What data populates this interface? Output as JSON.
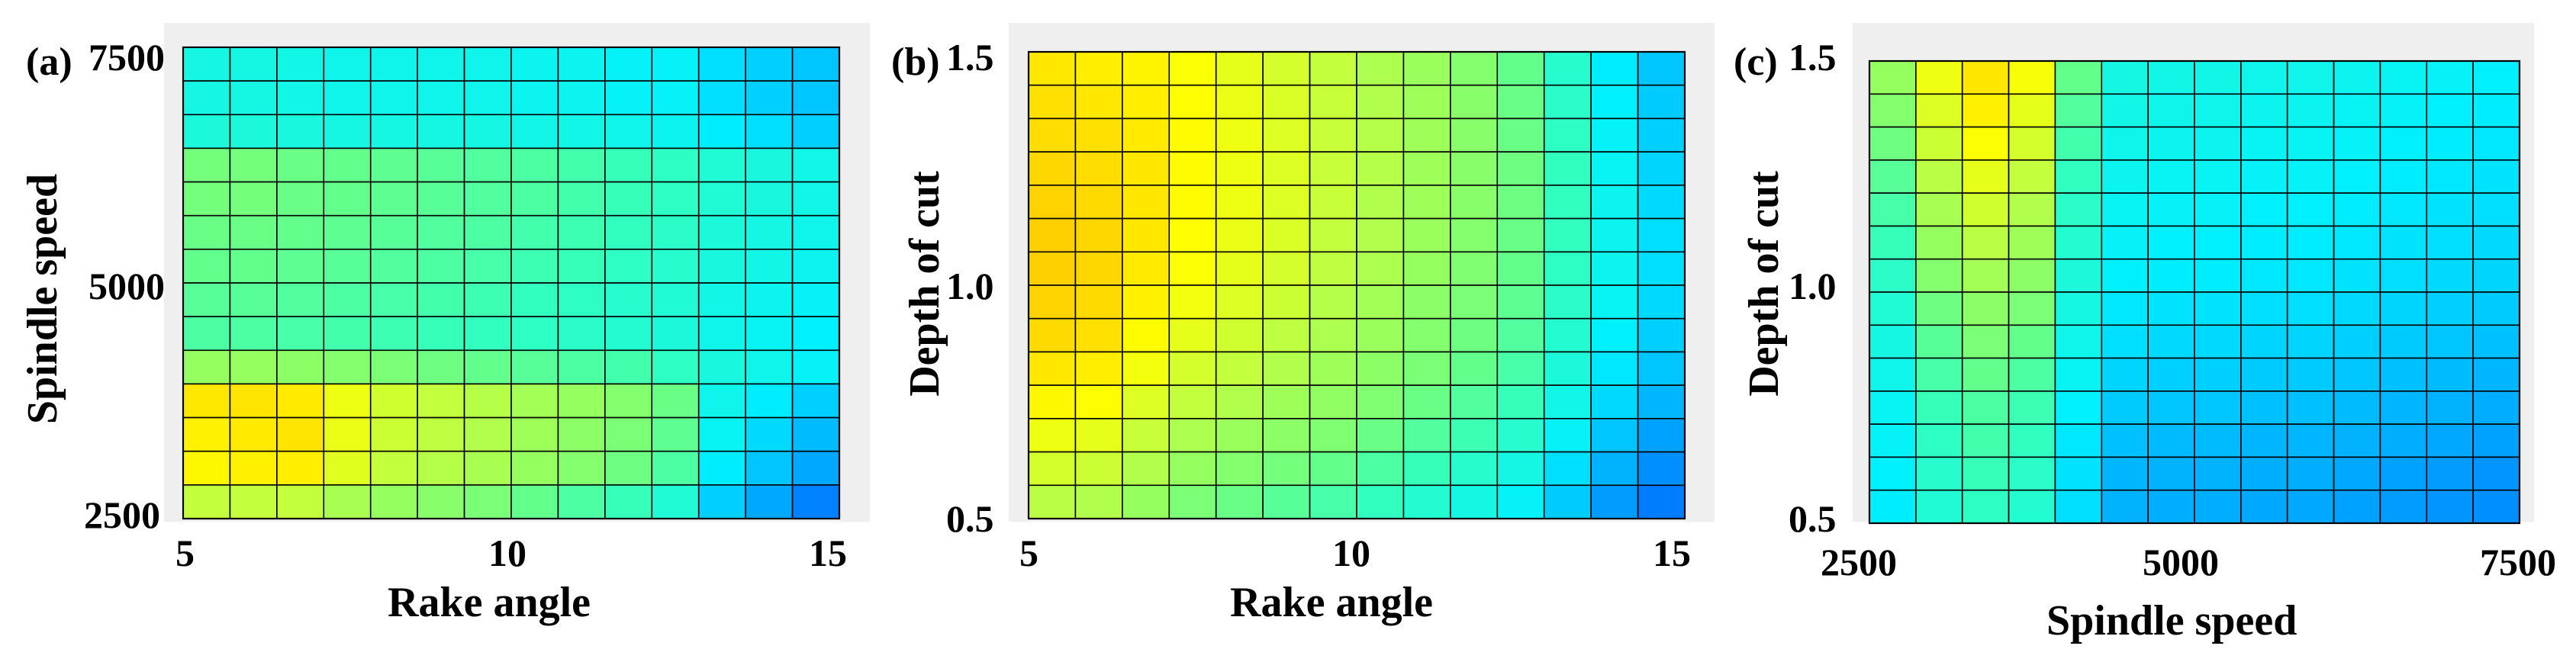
{
  "chart_data": [
    {
      "type": "heatmap",
      "panel_label": "(a)",
      "xlabel": "Rake angle",
      "ylabel": "Spindle speed",
      "xlim": [
        5,
        15
      ],
      "ylim": [
        2500,
        7500
      ],
      "x_ticks": [
        "5",
        "10",
        "15"
      ],
      "y_ticks": [
        "2500",
        "5000",
        "7500"
      ],
      "nx": 14,
      "ny": 14,
      "colorscale": [
        "#0050ff",
        "#00aaff",
        "#00f0ff",
        "#30ffc0",
        "#80ff70",
        "#c0ff40",
        "#ffff00",
        "#ffd000"
      ],
      "grid": true,
      "values_rows_top_to_bottom": [
        [
          0.35,
          0.35,
          0.34,
          0.33,
          0.33,
          0.33,
          0.33,
          0.32,
          0.32,
          0.3,
          0.3,
          0.25,
          0.22,
          0.2
        ],
        [
          0.35,
          0.35,
          0.34,
          0.33,
          0.33,
          0.33,
          0.33,
          0.32,
          0.32,
          0.3,
          0.3,
          0.25,
          0.22,
          0.2
        ],
        [
          0.37,
          0.37,
          0.36,
          0.35,
          0.35,
          0.35,
          0.35,
          0.34,
          0.34,
          0.33,
          0.32,
          0.28,
          0.25,
          0.22
        ],
        [
          0.55,
          0.55,
          0.53,
          0.52,
          0.51,
          0.5,
          0.49,
          0.48,
          0.46,
          0.44,
          0.42,
          0.38,
          0.36,
          0.34
        ],
        [
          0.55,
          0.55,
          0.53,
          0.52,
          0.51,
          0.5,
          0.49,
          0.48,
          0.46,
          0.44,
          0.42,
          0.38,
          0.36,
          0.34
        ],
        [
          0.53,
          0.53,
          0.52,
          0.51,
          0.5,
          0.49,
          0.48,
          0.46,
          0.45,
          0.43,
          0.41,
          0.37,
          0.35,
          0.33
        ],
        [
          0.52,
          0.52,
          0.51,
          0.5,
          0.49,
          0.48,
          0.47,
          0.45,
          0.44,
          0.42,
          0.4,
          0.36,
          0.34,
          0.32
        ],
        [
          0.5,
          0.5,
          0.49,
          0.48,
          0.47,
          0.46,
          0.45,
          0.43,
          0.42,
          0.4,
          0.38,
          0.34,
          0.32,
          0.3
        ],
        [
          0.48,
          0.48,
          0.47,
          0.46,
          0.45,
          0.44,
          0.43,
          0.42,
          0.41,
          0.39,
          0.37,
          0.33,
          0.31,
          0.29
        ],
        [
          0.62,
          0.62,
          0.6,
          0.58,
          0.56,
          0.54,
          0.52,
          0.5,
          0.48,
          0.46,
          0.42,
          0.36,
          0.33,
          0.3
        ],
        [
          0.93,
          0.94,
          0.92,
          0.82,
          0.75,
          0.72,
          0.69,
          0.65,
          0.62,
          0.58,
          0.53,
          0.33,
          0.28,
          0.22
        ],
        [
          0.9,
          0.92,
          0.94,
          0.81,
          0.74,
          0.71,
          0.68,
          0.64,
          0.6,
          0.56,
          0.51,
          0.31,
          0.24,
          0.18
        ],
        [
          0.88,
          0.9,
          0.91,
          0.79,
          0.72,
          0.69,
          0.66,
          0.62,
          0.58,
          0.54,
          0.48,
          0.28,
          0.2,
          0.14
        ],
        [
          0.72,
          0.72,
          0.72,
          0.66,
          0.62,
          0.59,
          0.56,
          0.52,
          0.48,
          0.44,
          0.38,
          0.22,
          0.14,
          0.08
        ]
      ]
    },
    {
      "type": "heatmap",
      "panel_label": "(b)",
      "xlabel": "Rake angle",
      "ylabel": "Depth of cut",
      "xlim": [
        5,
        15
      ],
      "ylim": [
        0.5,
        1.5
      ],
      "x_ticks": [
        "5",
        "10",
        "15"
      ],
      "y_ticks": [
        "0.5",
        "1.0",
        "1.5"
      ],
      "nx": 14,
      "ny": 14,
      "colorscale": [
        "#0050ff",
        "#00aaff",
        "#00f0ff",
        "#30ffc0",
        "#80ff70",
        "#c0ff40",
        "#ffff00",
        "#ffd000"
      ],
      "grid": true,
      "values_rows_top_to_bottom": [
        [
          0.93,
          0.91,
          0.89,
          0.85,
          0.8,
          0.76,
          0.72,
          0.67,
          0.63,
          0.58,
          0.52,
          0.4,
          0.28,
          0.2
        ],
        [
          0.95,
          0.93,
          0.91,
          0.86,
          0.81,
          0.77,
          0.73,
          0.68,
          0.64,
          0.59,
          0.53,
          0.41,
          0.29,
          0.21
        ],
        [
          0.96,
          0.95,
          0.92,
          0.87,
          0.82,
          0.78,
          0.73,
          0.69,
          0.64,
          0.59,
          0.53,
          0.42,
          0.3,
          0.22
        ],
        [
          0.98,
          0.96,
          0.93,
          0.87,
          0.82,
          0.78,
          0.73,
          0.69,
          0.64,
          0.59,
          0.54,
          0.43,
          0.31,
          0.23
        ],
        [
          0.99,
          0.97,
          0.93,
          0.87,
          0.82,
          0.78,
          0.73,
          0.68,
          0.64,
          0.59,
          0.54,
          0.43,
          0.32,
          0.24
        ],
        [
          1.0,
          0.98,
          0.93,
          0.86,
          0.81,
          0.77,
          0.72,
          0.68,
          0.63,
          0.58,
          0.53,
          0.43,
          0.32,
          0.25
        ],
        [
          1.0,
          0.98,
          0.92,
          0.85,
          0.8,
          0.76,
          0.71,
          0.67,
          0.62,
          0.57,
          0.52,
          0.42,
          0.32,
          0.25
        ],
        [
          0.99,
          0.97,
          0.9,
          0.83,
          0.78,
          0.74,
          0.69,
          0.65,
          0.6,
          0.56,
          0.51,
          0.41,
          0.31,
          0.24
        ],
        [
          0.97,
          0.95,
          0.87,
          0.8,
          0.75,
          0.71,
          0.67,
          0.63,
          0.58,
          0.54,
          0.49,
          0.39,
          0.29,
          0.22
        ],
        [
          0.93,
          0.91,
          0.83,
          0.76,
          0.72,
          0.68,
          0.64,
          0.6,
          0.56,
          0.52,
          0.47,
          0.37,
          0.27,
          0.2
        ],
        [
          0.88,
          0.86,
          0.78,
          0.72,
          0.68,
          0.64,
          0.61,
          0.57,
          0.53,
          0.49,
          0.44,
          0.34,
          0.24,
          0.17
        ],
        [
          0.82,
          0.8,
          0.73,
          0.67,
          0.63,
          0.6,
          0.57,
          0.53,
          0.49,
          0.45,
          0.4,
          0.3,
          0.2,
          0.13
        ],
        [
          0.76,
          0.74,
          0.68,
          0.62,
          0.58,
          0.55,
          0.52,
          0.48,
          0.44,
          0.4,
          0.35,
          0.25,
          0.16,
          0.1
        ],
        [
          0.7,
          0.68,
          0.62,
          0.56,
          0.53,
          0.5,
          0.47,
          0.43,
          0.39,
          0.35,
          0.3,
          0.21,
          0.12,
          0.07
        ]
      ]
    },
    {
      "type": "heatmap",
      "panel_label": "(c)",
      "xlabel": "Spindle speed",
      "ylabel": "Depth of cut",
      "xlim": [
        2500,
        7500
      ],
      "ylim": [
        0.5,
        1.5
      ],
      "x_ticks": [
        "2500",
        "5000",
        "7500"
      ],
      "y_ticks": [
        "0.5",
        "1.0",
        "1.5"
      ],
      "nx": 14,
      "ny": 14,
      "colorscale": [
        "#0050ff",
        "#00aaff",
        "#00f0ff",
        "#30ffc0",
        "#80ff70",
        "#c0ff40",
        "#ffff00",
        "#ffd000"
      ],
      "grid": true,
      "values_rows_top_to_bottom": [
        [
          0.62,
          0.82,
          0.93,
          0.84,
          0.52,
          0.35,
          0.34,
          0.34,
          0.33,
          0.33,
          0.32,
          0.31,
          0.3,
          0.29
        ],
        [
          0.58,
          0.78,
          0.9,
          0.8,
          0.49,
          0.34,
          0.33,
          0.33,
          0.32,
          0.32,
          0.31,
          0.3,
          0.29,
          0.28
        ],
        [
          0.54,
          0.74,
          0.85,
          0.76,
          0.46,
          0.33,
          0.32,
          0.32,
          0.31,
          0.31,
          0.3,
          0.29,
          0.28,
          0.27
        ],
        [
          0.5,
          0.7,
          0.8,
          0.72,
          0.43,
          0.32,
          0.31,
          0.31,
          0.3,
          0.3,
          0.29,
          0.28,
          0.27,
          0.26
        ],
        [
          0.47,
          0.66,
          0.75,
          0.68,
          0.41,
          0.31,
          0.3,
          0.3,
          0.29,
          0.29,
          0.28,
          0.27,
          0.26,
          0.25
        ],
        [
          0.44,
          0.62,
          0.7,
          0.64,
          0.39,
          0.3,
          0.29,
          0.29,
          0.28,
          0.28,
          0.27,
          0.26,
          0.25,
          0.24
        ],
        [
          0.41,
          0.58,
          0.65,
          0.6,
          0.37,
          0.29,
          0.28,
          0.28,
          0.27,
          0.27,
          0.26,
          0.25,
          0.24,
          0.23
        ],
        [
          0.38,
          0.54,
          0.6,
          0.56,
          0.35,
          0.27,
          0.26,
          0.26,
          0.25,
          0.25,
          0.24,
          0.23,
          0.22,
          0.21
        ],
        [
          0.35,
          0.5,
          0.56,
          0.52,
          0.33,
          0.25,
          0.24,
          0.24,
          0.23,
          0.23,
          0.22,
          0.21,
          0.2,
          0.19
        ],
        [
          0.33,
          0.47,
          0.52,
          0.48,
          0.31,
          0.23,
          0.22,
          0.22,
          0.21,
          0.21,
          0.2,
          0.19,
          0.18,
          0.17
        ],
        [
          0.31,
          0.44,
          0.48,
          0.45,
          0.29,
          0.21,
          0.2,
          0.2,
          0.19,
          0.19,
          0.18,
          0.17,
          0.16,
          0.15
        ],
        [
          0.3,
          0.42,
          0.46,
          0.43,
          0.27,
          0.19,
          0.18,
          0.18,
          0.17,
          0.17,
          0.16,
          0.15,
          0.14,
          0.13
        ],
        [
          0.29,
          0.4,
          0.44,
          0.41,
          0.26,
          0.17,
          0.16,
          0.16,
          0.15,
          0.15,
          0.14,
          0.13,
          0.12,
          0.11
        ],
        [
          0.28,
          0.38,
          0.42,
          0.39,
          0.25,
          0.16,
          0.15,
          0.15,
          0.14,
          0.14,
          0.13,
          0.12,
          0.11,
          0.1
        ]
      ]
    }
  ]
}
